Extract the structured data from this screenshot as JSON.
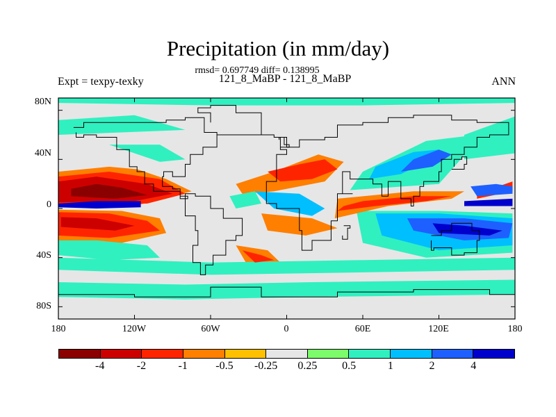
{
  "title": "Precipitation (in mm/day)",
  "stats": "rmsd= 0.697749 diff= 0.138995",
  "case_label": "121_8_MaBP - 121_8_MaBP",
  "expt_label": "Expt = texpy-texky",
  "season": "ANN",
  "lat_ticks": [
    "80N",
    "40N",
    "0",
    "40S",
    "80S"
  ],
  "lon_ticks": [
    "180",
    "120W",
    "60W",
    "0",
    "60E",
    "120E",
    "180"
  ],
  "colorbar": {
    "colors": [
      "#8b0000",
      "#cd0000",
      "#ff2400",
      "#ff7f00",
      "#ffc000",
      "#e6e6e6",
      "#7cfc6a",
      "#30f0c0",
      "#00bfff",
      "#1e60ff",
      "#0000cd"
    ],
    "labels": [
      "-4",
      "-2",
      "-1",
      "-0.5",
      "-0.25",
      "0.25",
      "0.5",
      "1",
      "2",
      "4"
    ]
  },
  "chart_data": {
    "type": "heatmap",
    "title": "Precipitation (in mm/day)",
    "subtitle": "rmsd= 0.697749 diff= 0.138995",
    "xlabel": "",
    "ylabel": "",
    "x_ticks": [
      "180",
      "120W",
      "60W",
      "0",
      "60E",
      "120E",
      "180"
    ],
    "y_ticks": [
      "80N",
      "40N",
      "0",
      "40S",
      "80S"
    ],
    "xlim": [
      -180,
      180
    ],
    "ylim": [
      -90,
      90
    ],
    "contour_levels": [
      -4,
      -2,
      -1,
      -0.5,
      -0.25,
      0.25,
      0.5,
      1,
      2,
      4
    ],
    "regions": [
      {
        "level": -4,
        "lon": [
          -170,
          -150,
          -130,
          -110,
          -135,
          -170
        ],
        "lat": [
          16,
          20,
          17,
          11,
          8,
          10
        ]
      },
      {
        "level": -2,
        "lon": [
          -180,
          -150,
          -110,
          -90,
          -120,
          -180
        ],
        "lat": [
          22,
          26,
          20,
          12,
          6,
          5
        ]
      },
      {
        "level": -1,
        "lon": [
          -180,
          -140,
          -100,
          -80,
          -110,
          -180
        ],
        "lat": [
          26,
          30,
          24,
          12,
          4,
          3
        ]
      },
      {
        "level": -0.5,
        "lon": [
          -180,
          -140,
          -118,
          -95,
          -75,
          -120,
          -180
        ],
        "lat": [
          30,
          34,
          32,
          24,
          14,
          2,
          1
        ]
      },
      {
        "level": 4,
        "lon": [
          -180,
          -150,
          -115,
          -115,
          -150,
          -180
        ],
        "lat": [
          4,
          6,
          6,
          1,
          0,
          1
        ]
      },
      {
        "level": -2,
        "lon": [
          -178,
          -150,
          -120,
          -135,
          -178
        ],
        "lat": [
          -7,
          -8,
          -14,
          -18,
          -15
        ]
      },
      {
        "level": -1,
        "lon": [
          -180,
          -140,
          -110,
          -100,
          -140,
          -180
        ],
        "lat": [
          -3,
          -4,
          -10,
          -18,
          -24,
          -22
        ]
      },
      {
        "level": -0.5,
        "lon": [
          -180,
          -130,
          -100,
          -95,
          -130,
          -180
        ],
        "lat": [
          -1,
          -2,
          -8,
          -20,
          -28,
          -26
        ]
      },
      {
        "level": 0.5,
        "lon": [
          -180,
          -150,
          -110,
          -100,
          -140,
          -180
        ],
        "lat": [
          -26,
          -26,
          -30,
          -40,
          -42,
          -38
        ]
      },
      {
        "level": 0.5,
        "lon": [
          -140,
          -100,
          -80,
          -100
        ],
        "lat": [
          52,
          52,
          40,
          38
        ]
      },
      {
        "level": 2,
        "lon": [
          145,
          165,
          178,
          178,
          150
        ],
        "lat": [
          18,
          20,
          18,
          12,
          10
        ]
      },
      {
        "level": 4,
        "lon": [
          140,
          178,
          178,
          140
        ],
        "lat": [
          6,
          8,
          2,
          2
        ]
      },
      {
        "level": -1,
        "lon": [
          150,
          178,
          178,
          150
        ],
        "lat": [
          12,
          22,
          14,
          8
        ]
      },
      {
        "level": 4,
        "lon": [
          115,
          140,
          170,
          160,
          120
        ],
        "lat": [
          -12,
          -14,
          -18,
          -22,
          -20
        ]
      },
      {
        "level": 2,
        "lon": [
          95,
          140,
          178,
          175,
          140,
          100
        ],
        "lat": [
          -8,
          -8,
          -12,
          -24,
          -26,
          -18
        ]
      },
      {
        "level": 1,
        "lon": [
          70,
          120,
          178,
          178,
          120,
          75
        ],
        "lat": [
          -4,
          -4,
          -8,
          -30,
          -34,
          -22
        ]
      },
      {
        "level": 0.5,
        "lon": [
          55,
          120,
          178,
          178,
          110,
          60
        ],
        "lat": [
          -2,
          -2,
          -4,
          -36,
          -40,
          -28
        ]
      },
      {
        "level": -1,
        "lon": [
          40,
          70,
          110,
          130,
          100,
          60,
          45
        ],
        "lat": [
          -2,
          2,
          6,
          10,
          10,
          6,
          2
        ]
      },
      {
        "level": -0.5,
        "lon": [
          38,
          80,
          130,
          140,
          100,
          40
        ],
        "lat": [
          -8,
          2,
          8,
          14,
          14,
          8
        ]
      },
      {
        "level": 1,
        "lon": [
          65,
          90,
          110,
          120,
          100,
          70
        ],
        "lat": [
          24,
          28,
          38,
          48,
          46,
          34
        ]
      },
      {
        "level": 2,
        "lon": [
          90,
          115,
          130,
          120,
          100
        ],
        "lat": [
          30,
          34,
          44,
          48,
          40
        ]
      },
      {
        "level": 0.5,
        "lon": [
          50,
          120,
          150,
          150,
          110,
          60
        ],
        "lat": [
          15,
          20,
          55,
          60,
          55,
          30
        ]
      },
      {
        "level": 0.5,
        "lon": [
          140,
          180,
          180,
          140
        ],
        "lat": [
          60,
          75,
          45,
          40
        ]
      },
      {
        "level": -1,
        "lon": [
          -15,
          10,
          30,
          40,
          20,
          -5
        ],
        "lat": [
          30,
          36,
          40,
          32,
          24,
          22
        ]
      },
      {
        "level": -0.5,
        "lon": [
          -40,
          -10,
          25,
          45,
          30,
          -10,
          -35
        ],
        "lat": [
          20,
          30,
          44,
          38,
          22,
          14,
          12
        ]
      },
      {
        "level": -1,
        "lon": [
          -35,
          -20,
          -10,
          -25
        ],
        "lat": [
          -34,
          -38,
          -42,
          -44
        ]
      },
      {
        "level": -0.5,
        "lon": [
          -40,
          -15,
          -5,
          -30
        ],
        "lat": [
          -30,
          -34,
          -44,
          -48
        ]
      },
      {
        "level": 0.5,
        "lon": [
          -45,
          -25,
          -20,
          -40
        ],
        "lat": [
          10,
          14,
          4,
          0
        ]
      },
      {
        "level": 1,
        "lon": [
          -25,
          10,
          30,
          20,
          -10
        ],
        "lat": [
          14,
          12,
          0,
          -6,
          0
        ]
      },
      {
        "level": -0.5,
        "lon": [
          -20,
          20,
          40,
          15,
          -15
        ],
        "lat": [
          -4,
          -8,
          -16,
          -22,
          -18
        ]
      },
      {
        "level": 0.5,
        "lon": [
          -180,
          -60,
          60,
          180,
          180,
          60,
          -60,
          -180
        ],
        "lat": [
          -40,
          -44,
          -42,
          -40,
          -50,
          -52,
          -54,
          -50
        ]
      },
      {
        "level": 0.5,
        "lon": [
          -180,
          -80,
          20,
          180,
          180,
          20,
          -80,
          -180
        ],
        "lat": [
          -60,
          -62,
          -60,
          -58,
          -70,
          -72,
          -74,
          -72
        ]
      },
      {
        "level": 0.5,
        "lon": [
          -180,
          -60,
          60,
          180,
          180,
          -180
        ],
        "lat": [
          86,
          84,
          84,
          86,
          90,
          90
        ]
      },
      {
        "level": 0.5,
        "lon": [
          -180,
          -120,
          -80,
          -180
        ],
        "lat": [
          72,
          76,
          64,
          60
        ]
      }
    ]
  }
}
